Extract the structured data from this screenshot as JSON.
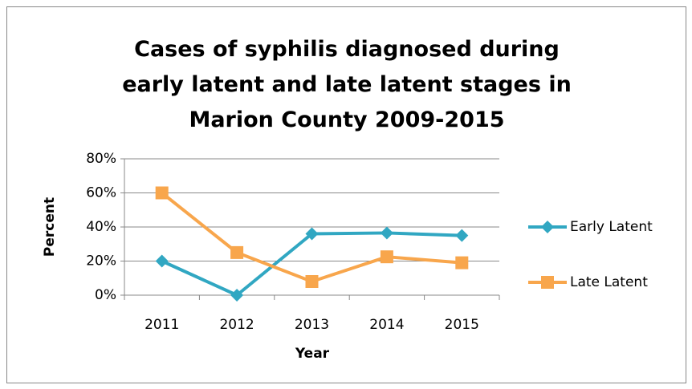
{
  "chart_data": {
    "type": "line",
    "title": "Cases of syphilis diagnosed during early latent and late latent stages in Marion County 2009-2015",
    "xlabel": "Year",
    "ylabel": "Percent",
    "categories": [
      "2011",
      "2012",
      "2013",
      "2014",
      "2015"
    ],
    "series": [
      {
        "name": "Early Latent",
        "color": "#31a7c2",
        "marker": "diamond",
        "values": [
          20,
          0,
          36,
          36.5,
          35
        ]
      },
      {
        "name": "Late Latent",
        "color": "#f8a64c",
        "marker": "square",
        "values": [
          60,
          25,
          8,
          22.5,
          19
        ]
      }
    ],
    "ylim": [
      0,
      80
    ],
    "yticks": [
      {
        "value": 0,
        "label": "0%"
      },
      {
        "value": 20,
        "label": "20%"
      },
      {
        "value": 40,
        "label": "40%"
      },
      {
        "value": 60,
        "label": "60%"
      },
      {
        "value": 80,
        "label": "80%"
      }
    ],
    "grid": true,
    "legend": "right"
  }
}
